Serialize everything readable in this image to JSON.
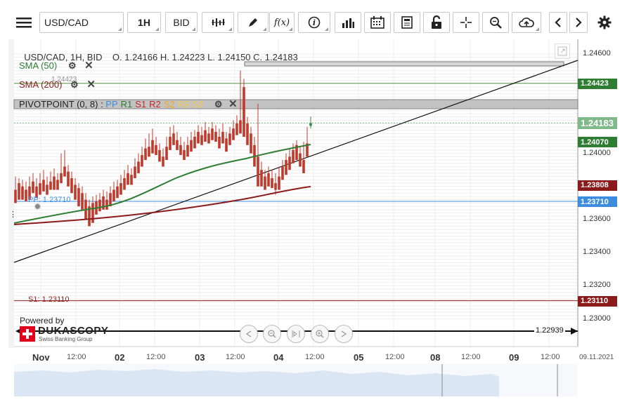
{
  "toolbar": {
    "instrument": "USD/CAD",
    "period": "1H",
    "side": "BID",
    "fx_label": "f(x)"
  },
  "legend": {
    "ohlc": "USD/CAD, 1H, BID    O. 1.24166 H. 1.24223 L. 1.24150 C. 1.24183",
    "sma50": "SMA (50)",
    "sma200": "SMA (200)",
    "sma200_overlap": "1.24423",
    "pivot_name": "PIVOTPOINT (0, 8)",
    "pivot_sep": " : ",
    "pivot_levels": [
      {
        "label": "PP",
        "color": "#3c8dde"
      },
      {
        "label": "R1",
        "color": "#2e7d32"
      },
      {
        "label": "S1",
        "color": "#c62828"
      },
      {
        "label": "R2",
        "color": "#c62828"
      },
      {
        "label": "S2",
        "color": "#f5a623"
      },
      {
        "label": "R3",
        "color": "#f2c94c"
      },
      {
        "label": "S3",
        "color": "#f2c94c"
      }
    ]
  },
  "price_axis": {
    "ticks": [
      "1.24600",
      "1.24000",
      "1.23600",
      "1.23400",
      "1.23200",
      "1.23000"
    ],
    "tags": [
      {
        "value": "1.24423",
        "color": "#2e7d32"
      },
      {
        "value": "1.24183",
        "color": "#7fb98a"
      },
      {
        "value": "1.24070",
        "color": "#2e7d32"
      },
      {
        "value": "1.23808",
        "color": "#8b1a1a"
      },
      {
        "value": "1.23710",
        "color": "#3c8dde"
      },
      {
        "value": "1.23110",
        "color": "#8b1a1a"
      }
    ],
    "bottom_line_value": "1.22939"
  },
  "chart_labels": {
    "pp": "PP: 1.23710",
    "s1": "S1: 1.23110"
  },
  "time_axis": {
    "labels": [
      {
        "text": "Nov",
        "bold": true
      },
      {
        "text": "12:00",
        "bold": false
      },
      {
        "text": "02",
        "bold": true
      },
      {
        "text": "12:00",
        "bold": false
      },
      {
        "text": "03",
        "bold": true
      },
      {
        "text": "12:00",
        "bold": false
      },
      {
        "text": "04",
        "bold": true
      },
      {
        "text": "12:00",
        "bold": false
      },
      {
        "text": "05",
        "bold": true
      },
      {
        "text": "12:00",
        "bold": false
      },
      {
        "text": "08",
        "bold": true
      },
      {
        "text": "12:00",
        "bold": false
      },
      {
        "text": "09",
        "bold": true
      },
      {
        "text": "12:00",
        "bold": false
      }
    ],
    "current_date": "09.11.2021"
  },
  "branding": {
    "powered_by": "Powered by",
    "logo_text": "DUKASCOPY",
    "logo_sub": "Swiss Banking Group"
  },
  "colors": {
    "sma50": "#2e7d32",
    "sma200": "#8b1a1a",
    "pp_line": "#3c8dde",
    "s1_line": "#8b1a1a",
    "r1_line": "#5a9a4a",
    "candle_up": "#3a8a4a",
    "candle_down": "#c0392b"
  }
}
